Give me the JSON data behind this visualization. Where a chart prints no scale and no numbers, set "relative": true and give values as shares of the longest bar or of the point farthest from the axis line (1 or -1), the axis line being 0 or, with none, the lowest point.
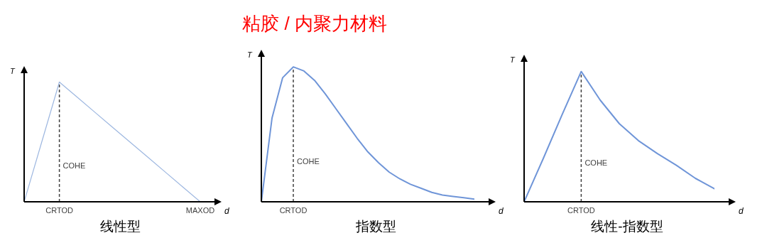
{
  "chart_data": [
    {
      "type": "other",
      "title": "粘胶 / 内聚力材料"
    },
    {
      "type": "line",
      "relative": true,
      "ylabel": "T",
      "xlabel": "d",
      "tick_labels": "x",
      "color": "#9db7e0",
      "marker": "none",
      "line_style": "solid",
      "categories": [
        null,
        null,
        "CRTOD",
        null,
        null,
        null,
        null,
        null,
        null,
        null,
        "MAXOD"
      ],
      "values": [
        0,
        0.5,
        1,
        0.875,
        0.75,
        0.625,
        0.5,
        0.375,
        0.25,
        0.125,
        0
      ],
      "ref_lines": [
        {
          "axis": "x",
          "value": "CRTOD",
          "line_style": "dashed",
          "color": "#404040"
        }
      ],
      "annotations": [
        "COHE",
        "线性型"
      ]
    },
    {
      "type": "line",
      "relative": true,
      "ylabel": "T",
      "xlabel": "d",
      "tick_labels": "x",
      "color": "#6f95d8",
      "marker": "none",
      "line_style": "solid",
      "categories": [
        null,
        null,
        null,
        null,
        null,
        null,
        null,
        null,
        null,
        null,
        null,
        null,
        null,
        null,
        null,
        null,
        null,
        null,
        null,
        null,
        null
      ],
      "values": [
        0,
        0.62,
        0.92,
        1,
        0.97,
        0.9,
        0.8,
        0.69,
        0.58,
        0.47,
        0.37,
        0.29,
        0.22,
        0.17,
        0.13,
        0.1,
        0.07,
        0.05,
        0.04,
        0.03,
        0.02
      ],
      "annotations": [
        "COHE",
        "指数型",
        "CRTOD"
      ]
    },
    {
      "type": "line",
      "relative": true,
      "ylabel": "T",
      "xlabel": "d",
      "tick_labels": "x",
      "color": "#6f95d8",
      "marker": "none",
      "line_style": "solid",
      "categories": [
        null,
        null,
        null,
        null,
        null,
        null,
        null,
        null,
        null,
        null,
        null
      ],
      "values": [
        0,
        0.33,
        0.67,
        1,
        0.78,
        0.6,
        0.47,
        0.37,
        0.28,
        0.18,
        0.1
      ],
      "annotations": [
        "COHE",
        "线性-指数型",
        "CRTOD"
      ]
    }
  ]
}
